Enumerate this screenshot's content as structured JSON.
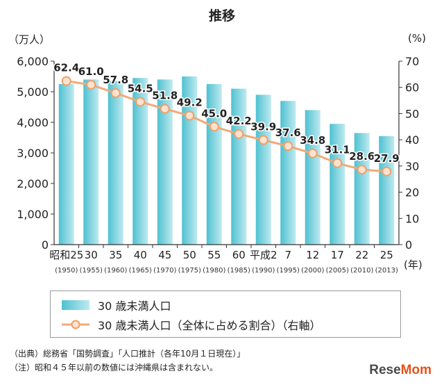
{
  "title": "推移",
  "left_unit": "（万人）",
  "right_unit": "(%)",
  "year_unit": "(年)",
  "legend": {
    "bar": "30 歳未満人口",
    "line": "30 歳未満人口（全体に占める割合）（右軸）"
  },
  "notes": [
    "（出典）総務省「国勢調査」「人口推計（各年10月１日現在）」",
    "（注）昭和４５年以前の数値には沖縄県は含まれない。"
  ],
  "brand": {
    "part1": "Rese",
    "part2": "Mom"
  },
  "colors": {
    "bar_top": "#bfeaf0",
    "bar_bottom": "#4fc1d1",
    "line": "#f2a977",
    "marker": "#f0a069"
  },
  "chart_data": {
    "type": "bar",
    "categories": [
      "昭和25",
      "30",
      "35",
      "40",
      "45",
      "50",
      "55",
      "60",
      "平成2",
      "7",
      "12",
      "17",
      "22",
      "25"
    ],
    "sub_labels": [
      "(1950)",
      "(1955)",
      "(1960)",
      "(1965)",
      "(1970)",
      "(1975)",
      "(1980)",
      "(1985)",
      "(1990)",
      "(1995)",
      "(2000)",
      "(2005)",
      "(2010)",
      "(2013)"
    ],
    "left_axis": {
      "ylim": [
        0,
        6000
      ],
      "ticks": [
        "0",
        "1,000",
        "2,000",
        "3,000",
        "4,000",
        "5,000",
        "6,000"
      ]
    },
    "right_axis": {
      "ylim": [
        0,
        70
      ],
      "ticks": [
        "0",
        "10",
        "20",
        "30",
        "40",
        "50",
        "60",
        "70"
      ]
    },
    "series": [
      {
        "name": "30 歳未満人口",
        "type": "bar",
        "axis": "left",
        "values": [
          5250,
          5400,
          5350,
          5450,
          5400,
          5500,
          5250,
          5100,
          4900,
          4700,
          4400,
          3950,
          3650,
          3550
        ]
      },
      {
        "name": "30 歳未満人口（全体に占める割合）（右軸）",
        "type": "line",
        "axis": "right",
        "values": [
          62.4,
          61.0,
          57.8,
          54.5,
          51.8,
          49.2,
          45.0,
          42.2,
          39.9,
          37.6,
          34.8,
          31.1,
          28.6,
          27.9
        ],
        "labels": [
          "62.4",
          "61.0",
          "57.8",
          "54.5",
          "51.8",
          "49.2",
          "45.0",
          "42.2",
          "39.9",
          "37.6",
          "34.8",
          "31.1",
          "28.6",
          "27.9"
        ]
      }
    ]
  }
}
